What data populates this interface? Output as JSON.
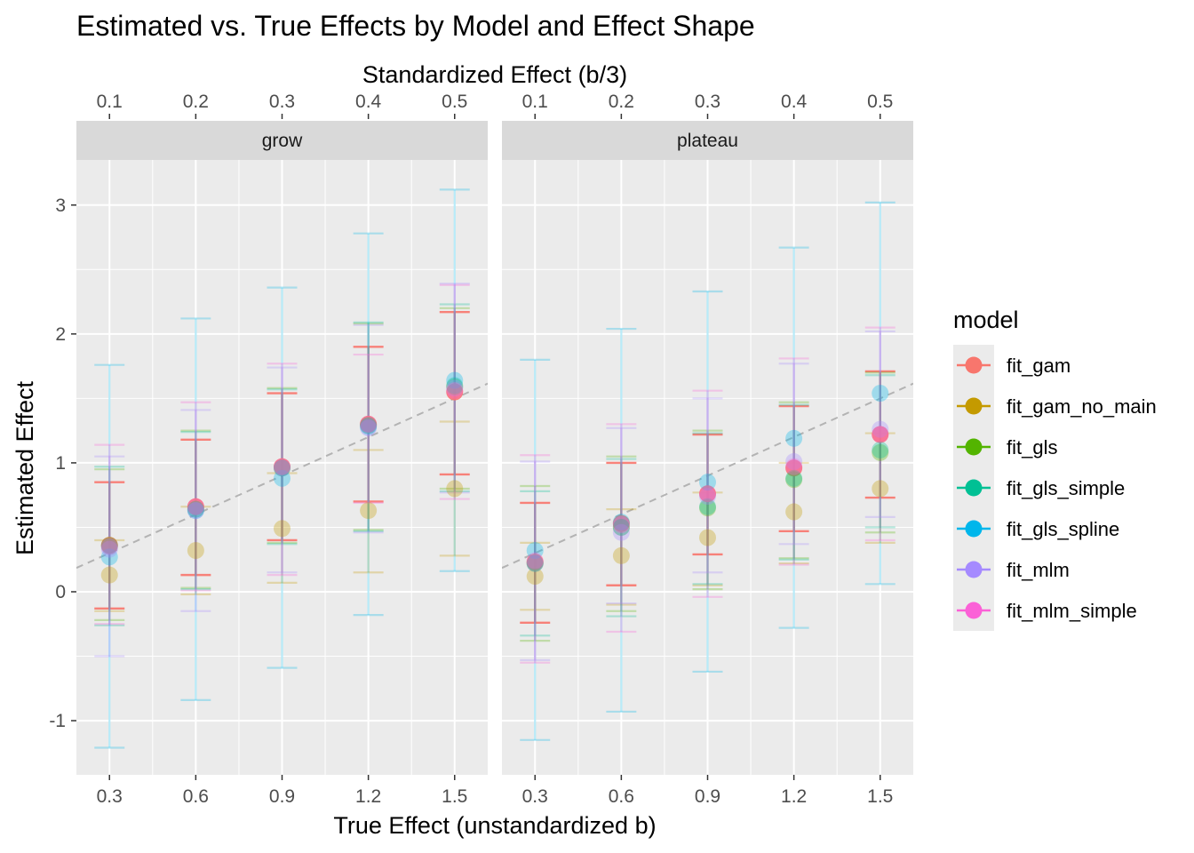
{
  "chart_data": {
    "type": "scatter",
    "title": "Estimated vs. True Effects by Model and Effect Shape",
    "xlabel": "True Effect (unstandardized b)",
    "x2label": "Standardized Effect (b/3)",
    "ylabel": "Estimated Effect",
    "x_ticks": [
      "0.3",
      "0.6",
      "0.9",
      "1.2",
      "1.5"
    ],
    "x_values": [
      0.3,
      0.6,
      0.9,
      1.2,
      1.5
    ],
    "x2_ticks": [
      "0.1",
      "0.2",
      "0.3",
      "0.4",
      "0.5"
    ],
    "y_ticks": [
      "-1",
      "0",
      "1",
      "2",
      "3"
    ],
    "y_tick_values": [
      -1,
      0,
      1,
      2,
      3
    ],
    "xlim": [
      0.185,
      1.615
    ],
    "ylim": [
      -1.42,
      3.35
    ],
    "reference_line": "y = x (dashed)",
    "grid": true,
    "legend": {
      "title": "model",
      "position": "right",
      "entries": [
        "fit_gam",
        "fit_gam_no_main",
        "fit_gls",
        "fit_gls_simple",
        "fit_gls_spline",
        "fit_mlm",
        "fit_mlm_simple"
      ]
    },
    "colors": {
      "fit_gam": "#F8766D",
      "fit_gam_no_main": "#C49A00",
      "fit_gls": "#53B400",
      "fit_gls_simple": "#00C094",
      "fit_gls_spline": "#00B6EB",
      "fit_mlm": "#A58AFF",
      "fit_mlm_simple": "#FB61D7"
    },
    "panels": [
      {
        "label": "grow",
        "series": [
          {
            "name": "fit_gam",
            "y": [
              0.36,
              0.66,
              0.97,
              1.3,
              1.55
            ],
            "lo": [
              -0.13,
              0.13,
              0.4,
              0.7,
              0.91
            ],
            "hi": [
              0.85,
              1.18,
              1.54,
              1.9,
              2.17
            ]
          },
          {
            "name": "fit_gam_no_main",
            "y": [
              0.13,
              0.32,
              0.49,
              0.63,
              0.8
            ],
            "lo": [
              -0.15,
              -0.02,
              0.07,
              0.15,
              0.28
            ],
            "hi": [
              0.4,
              0.66,
              0.92,
              1.1,
              1.32
            ]
          },
          {
            "name": "fit_gls",
            "y": [
              0.36,
              0.64,
              0.96,
              1.29,
              1.59
            ],
            "lo": [
              -0.22,
              0.03,
              0.38,
              0.48,
              0.8
            ],
            "hi": [
              0.95,
              1.25,
              1.58,
              2.08,
              2.2
            ]
          },
          {
            "name": "fit_gls_simple",
            "y": [
              0.35,
              0.64,
              0.96,
              1.29,
              1.6
            ],
            "lo": [
              -0.26,
              0.02,
              0.37,
              0.47,
              0.78
            ],
            "hi": [
              0.97,
              1.24,
              1.57,
              2.09,
              2.23
            ]
          },
          {
            "name": "fit_gls_spline",
            "y": [
              0.27,
              0.63,
              0.88,
              1.28,
              1.64
            ],
            "lo": [
              -1.21,
              -0.84,
              -0.59,
              -0.18,
              0.16
            ],
            "hi": [
              1.76,
              2.12,
              2.36,
              2.78,
              3.12
            ]
          },
          {
            "name": "fit_mlm",
            "y": [
              0.33,
              0.63,
              0.96,
              1.27,
              1.58
            ],
            "lo": [
              -0.5,
              -0.15,
              0.15,
              0.46,
              0.77
            ],
            "hi": [
              1.05,
              1.41,
              1.74,
              2.07,
              2.39
            ]
          },
          {
            "name": "fit_mlm_simple",
            "y": [
              0.35,
              0.66,
              0.97,
              1.3,
              1.56
            ],
            "lo": [
              -0.25,
              0.01,
              0.13,
              0.69,
              0.72
            ],
            "hi": [
              1.14,
              1.47,
              1.77,
              1.84,
              2.38
            ]
          }
        ]
      },
      {
        "label": "plateau",
        "series": [
          {
            "name": "fit_gam",
            "y": [
              0.23,
              0.53,
              0.76,
              0.96,
              1.22
            ],
            "lo": [
              -0.24,
              0.05,
              0.29,
              0.47,
              0.73
            ],
            "hi": [
              0.69,
              1.0,
              1.22,
              1.44,
              1.71
            ]
          },
          {
            "name": "fit_gam_no_main",
            "y": [
              0.12,
              0.28,
              0.42,
              0.62,
              0.8
            ],
            "lo": [
              -0.14,
              -0.1,
              0.05,
              0.22,
              0.38
            ],
            "hi": [
              0.38,
              0.64,
              0.77,
              1.0,
              1.23
            ]
          },
          {
            "name": "fit_gls",
            "y": [
              0.22,
              0.5,
              0.65,
              0.87,
              1.08
            ],
            "lo": [
              -0.38,
              -0.15,
              0.02,
              0.26,
              0.46
            ],
            "hi": [
              0.82,
              1.05,
              1.25,
              1.47,
              1.7
            ]
          },
          {
            "name": "fit_gls_simple",
            "y": [
              0.22,
              0.5,
              0.66,
              0.88,
              1.1
            ],
            "lo": [
              -0.34,
              -0.19,
              0.06,
              0.25,
              0.5
            ],
            "hi": [
              0.78,
              1.03,
              1.23,
              1.45,
              1.68
            ]
          },
          {
            "name": "fit_gls_spline",
            "y": [
              0.32,
              0.54,
              0.85,
              1.19,
              1.54
            ],
            "lo": [
              -1.15,
              -0.93,
              -0.62,
              -0.28,
              0.06
            ],
            "hi": [
              1.8,
              2.04,
              2.33,
              2.67,
              3.02
            ]
          },
          {
            "name": "fit_mlm",
            "y": [
              0.22,
              0.46,
              0.74,
              1.01,
              1.26
            ],
            "lo": [
              -0.53,
              -0.09,
              0.15,
              0.37,
              0.58
            ],
            "hi": [
              1.01,
              1.27,
              1.5,
              1.77,
              2.02
            ]
          },
          {
            "name": "fit_mlm_simple",
            "y": [
              0.24,
              0.52,
              0.76,
              0.97,
              1.22
            ],
            "lo": [
              -0.55,
              -0.31,
              -0.04,
              0.21,
              0.4
            ],
            "hi": [
              1.06,
              1.3,
              1.56,
              1.81,
              2.05
            ]
          }
        ]
      }
    ]
  }
}
